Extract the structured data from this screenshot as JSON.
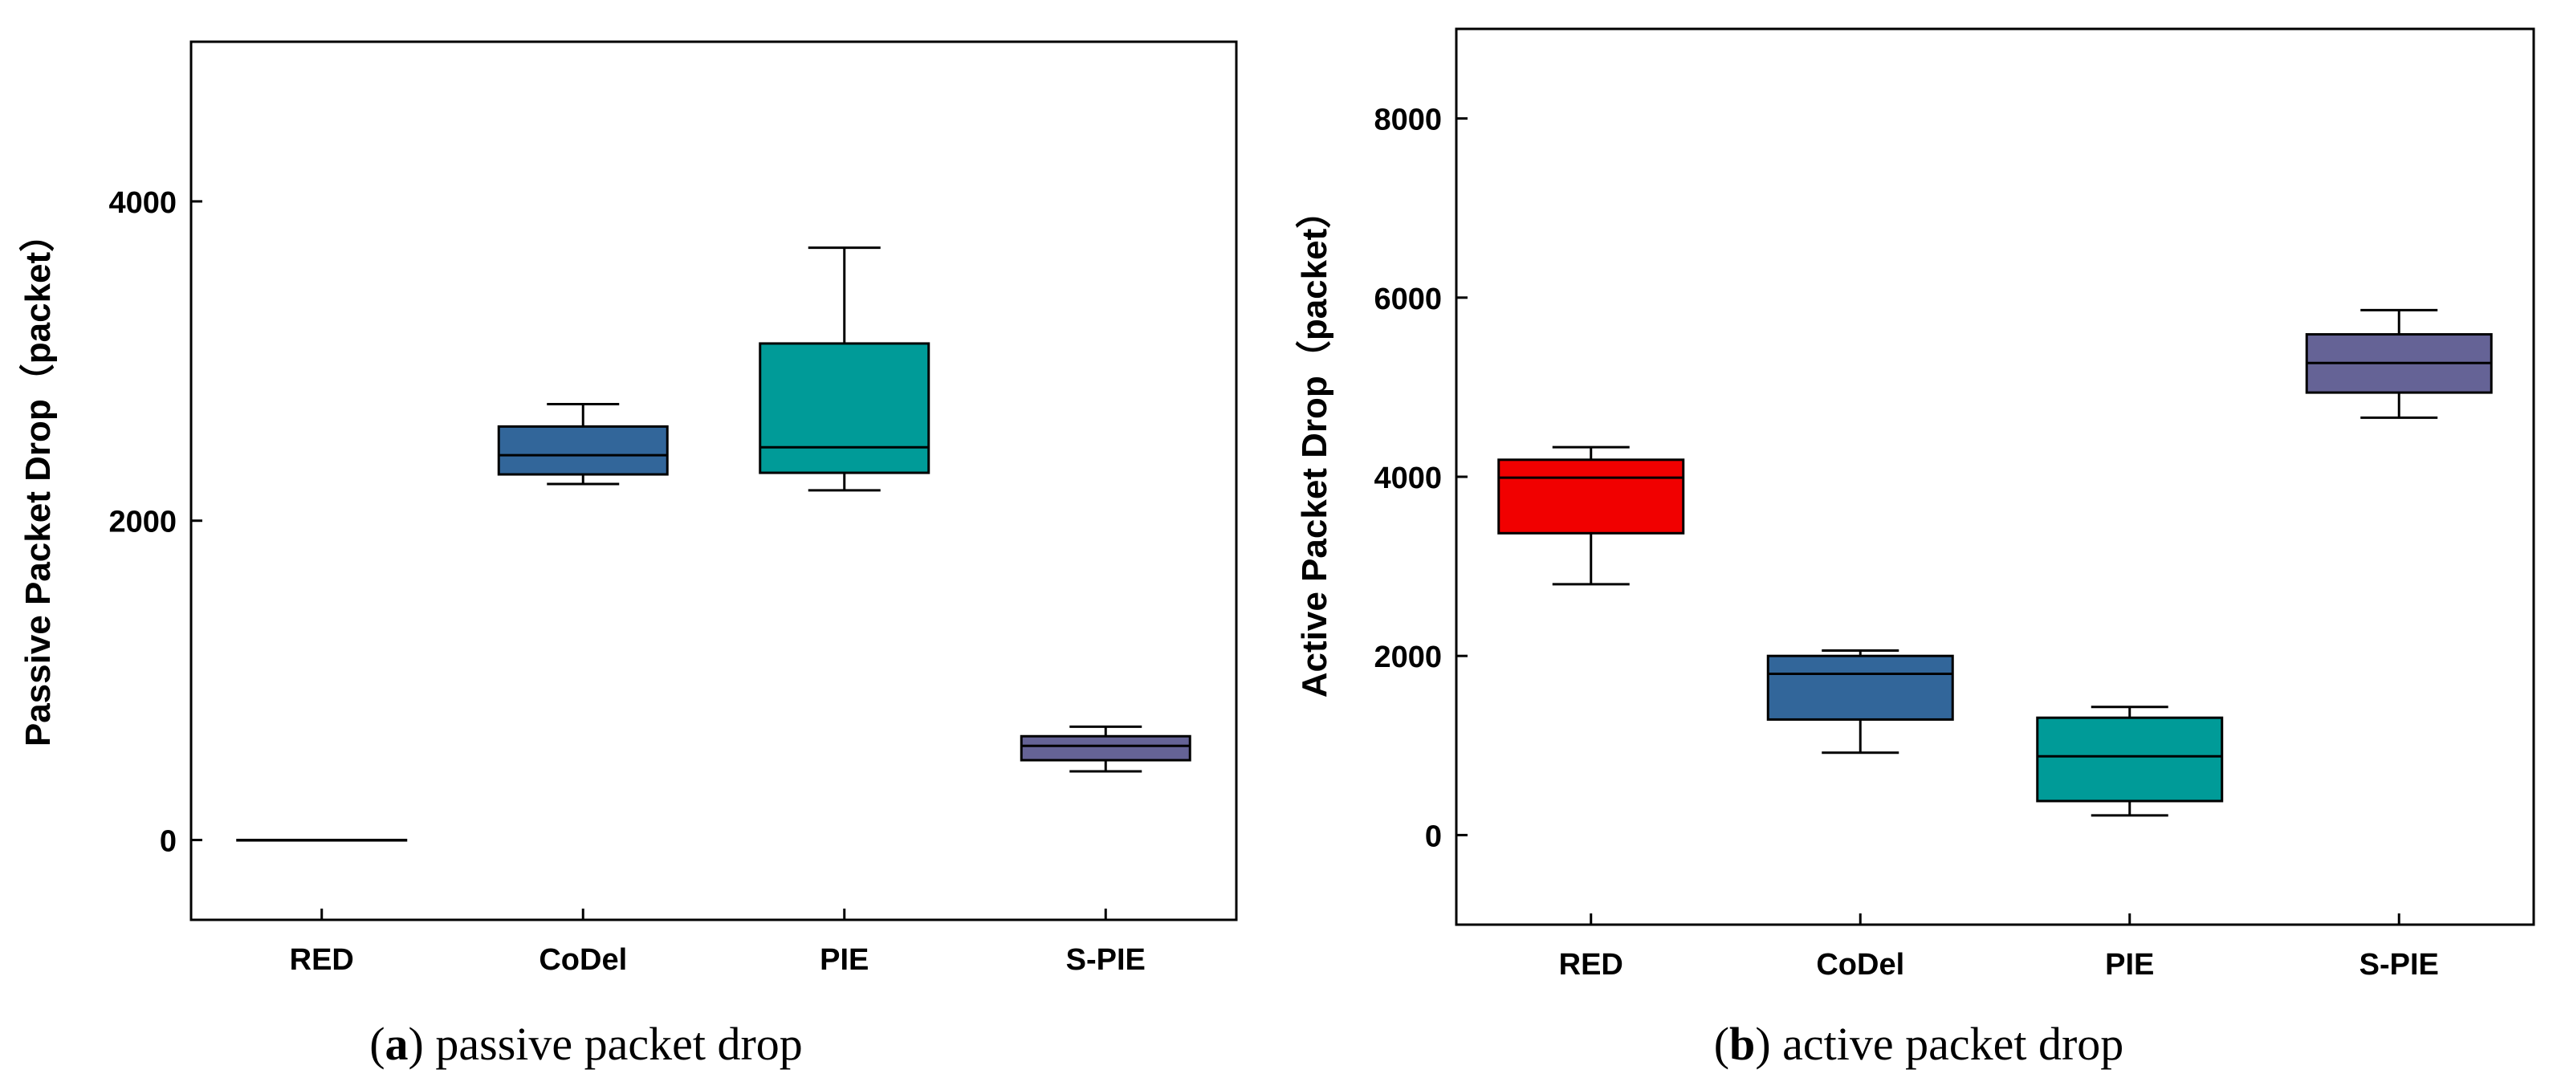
{
  "chart_data": [
    {
      "type": "box",
      "panel_letter": "a",
      "caption": "passive packet drop",
      "ylabel": "Passive Packet Drop（packet）",
      "xlabel": "",
      "categories": [
        "RED",
        "CoDel",
        "PIE",
        "S-PIE"
      ],
      "ylim": [
        -500,
        5000
      ],
      "yticks": [
        0,
        2000,
        4000
      ],
      "boxes": [
        {
          "name": "RED",
          "whisker_low": 0,
          "q1": 0,
          "median": 0,
          "q3": 0,
          "whisker_high": 0,
          "color": "#e8e8e8"
        },
        {
          "name": "CoDel",
          "whisker_low": 2230,
          "q1": 2290,
          "median": 2410,
          "q3": 2590,
          "whisker_high": 2730,
          "color": "#32669a"
        },
        {
          "name": "PIE",
          "whisker_low": 2190,
          "q1": 2300,
          "median": 2460,
          "q3": 3110,
          "whisker_high": 3710,
          "color": "#009b98"
        },
        {
          "name": "S-PIE",
          "whisker_low": 430,
          "q1": 500,
          "median": 590,
          "q3": 650,
          "whisker_high": 710,
          "color": "#656396"
        }
      ]
    },
    {
      "type": "box",
      "panel_letter": "b",
      "caption": "active packet drop",
      "ylabel": "Active Packet Drop（packet）",
      "xlabel": "",
      "categories": [
        "RED",
        "CoDel",
        "PIE",
        "S-PIE"
      ],
      "ylim": [
        -1000,
        9000
      ],
      "yticks": [
        0,
        2000,
        4000,
        6000,
        8000
      ],
      "boxes": [
        {
          "name": "RED",
          "whisker_low": 2800,
          "q1": 3370,
          "median": 3990,
          "q3": 4190,
          "whisker_high": 4330,
          "color": "#f10000"
        },
        {
          "name": "CoDel",
          "whisker_low": 920,
          "q1": 1290,
          "median": 1800,
          "q3": 2000,
          "whisker_high": 2060,
          "color": "#32669a"
        },
        {
          "name": "PIE",
          "whisker_low": 220,
          "q1": 380,
          "median": 880,
          "q3": 1310,
          "whisker_high": 1430,
          "color": "#009b98"
        },
        {
          "name": "S-PIE",
          "whisker_low": 4660,
          "q1": 4940,
          "median": 5270,
          "q3": 5590,
          "whisker_high": 5860,
          "color": "#656396"
        }
      ]
    }
  ]
}
